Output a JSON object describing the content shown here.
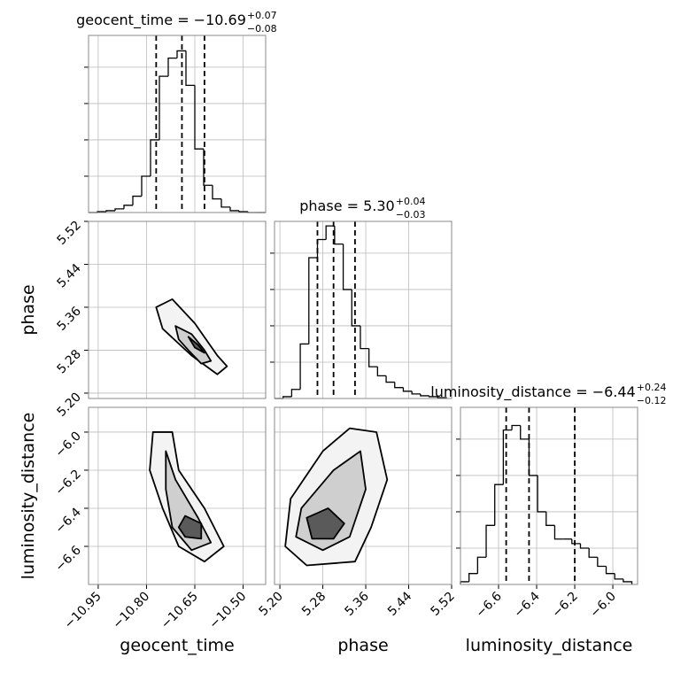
{
  "chart_data": {
    "type": "corner",
    "params": [
      {
        "label": "geocent_time",
        "title": "geocent_time = −10.69",
        "title_sup": "+0.07",
        "title_sub": "−0.08",
        "lim": [
          -10.98,
          -10.43
        ],
        "ticks": [
          {
            "value": -10.95,
            "label": "−10.95"
          },
          {
            "value": -10.8,
            "label": "−10.80"
          },
          {
            "value": -10.65,
            "label": "−10.65"
          },
          {
            "value": -10.5,
            "label": "−10.50"
          }
        ],
        "bins": [
          -10.98,
          -10.9525,
          -10.925,
          -10.8975,
          -10.87,
          -10.8425,
          -10.815,
          -10.7875,
          -10.76,
          -10.7325,
          -10.705,
          -10.6775,
          -10.65,
          -10.6225,
          -10.595,
          -10.5675,
          -10.54,
          -10.5125,
          -10.485,
          -10.4575,
          -10.43
        ],
        "counts": [
          0,
          1,
          2,
          4,
          8,
          18,
          40,
          80,
          150,
          170,
          178,
          140,
          70,
          30,
          15,
          6,
          2,
          1,
          0,
          0
        ],
        "quantiles": [
          -10.77,
          -10.69,
          -10.62
        ]
      },
      {
        "label": "phase",
        "title": "phase = 5.30",
        "title_sup": "+0.04",
        "title_sub": "−0.03",
        "lim": [
          5.19,
          5.52
        ],
        "ticks": [
          {
            "value": 5.2,
            "label": "5.20"
          },
          {
            "value": 5.28,
            "label": "5.28"
          },
          {
            "value": 5.36,
            "label": "5.36"
          },
          {
            "value": 5.44,
            "label": "5.44"
          },
          {
            "value": 5.52,
            "label": "5.52"
          }
        ],
        "bins": [
          5.19,
          5.206,
          5.222,
          5.238,
          5.254,
          5.27,
          5.286,
          5.302,
          5.318,
          5.334,
          5.35,
          5.366,
          5.382,
          5.398,
          5.414,
          5.43,
          5.446,
          5.462,
          5.478,
          5.494,
          5.51
        ],
        "counts": [
          0,
          2,
          10,
          60,
          155,
          175,
          190,
          170,
          120,
          80,
          55,
          35,
          25,
          18,
          12,
          8,
          5,
          3,
          2,
          1
        ],
        "quantiles": [
          5.27,
          5.3,
          5.34
        ]
      },
      {
        "label": "luminosity_distance",
        "title": "luminosity_distance = −6.44",
        "title_sup": "+0.24",
        "title_sub": "−0.12",
        "lim": [
          -6.8,
          -5.87
        ],
        "ticks": [
          {
            "value": -6.6,
            "label": "−6.6"
          },
          {
            "value": -6.4,
            "label": "−6.4"
          },
          {
            "value": -6.2,
            "label": "−6.2"
          },
          {
            "value": -6.0,
            "label": "−6.0"
          }
        ],
        "bins": [
          -6.8,
          -6.755,
          -6.71,
          -6.665,
          -6.62,
          -6.575,
          -6.53,
          -6.485,
          -6.44,
          -6.395,
          -6.35,
          -6.305,
          -6.26,
          -6.215,
          -6.17,
          -6.125,
          -6.08,
          -6.035,
          -5.99,
          -5.945,
          -5.9
        ],
        "counts": [
          3,
          12,
          30,
          65,
          110,
          170,
          175,
          160,
          120,
          80,
          65,
          50,
          50,
          45,
          40,
          30,
          20,
          12,
          6,
          3
        ],
        "quantiles": [
          -6.56,
          -6.44,
          -6.2
        ]
      }
    ],
    "hist_ylim": [
      0,
      195
    ],
    "hist_yticks": [
      40,
      80,
      120,
      160
    ],
    "grid": true,
    "contour_fills": [
      "#f3f3f3",
      "#cfcfcf",
      "#5a5a5a"
    ],
    "pairs": [
      {
        "x": 0,
        "y": 1,
        "contours": [
          {
            "x": [
              -10.77,
              -10.72,
              -10.65,
              -10.58,
              -10.55,
              -10.58,
              -10.66,
              -10.75
            ],
            "y": [
              5.36,
              5.375,
              5.33,
              5.27,
              5.25,
              5.235,
              5.27,
              5.32
            ]
          },
          {
            "x": [
              -10.71,
              -10.66,
              -10.62,
              -10.6,
              -10.63,
              -10.67,
              -10.7
            ],
            "y": [
              5.325,
              5.31,
              5.28,
              5.26,
              5.255,
              5.28,
              5.3
            ]
          },
          {
            "x": [
              -10.67,
              -10.64,
              -10.62,
              -10.65
            ],
            "y": [
              5.305,
              5.29,
              5.275,
              5.285
            ]
          }
        ]
      },
      {
        "x": 0,
        "y": 2,
        "contours": [
          {
            "x": [
              -10.78,
              -10.72,
              -10.7,
              -10.62,
              -10.56,
              -10.62,
              -10.7,
              -10.75,
              -10.79
            ],
            "y": [
              -6.0,
              -6.0,
              -6.2,
              -6.4,
              -6.6,
              -6.68,
              -6.6,
              -6.4,
              -6.2
            ]
          },
          {
            "x": [
              -10.74,
              -10.71,
              -10.64,
              -10.6,
              -10.66,
              -10.72,
              -10.74
            ],
            "y": [
              -6.1,
              -6.25,
              -6.45,
              -6.58,
              -6.62,
              -6.5,
              -6.3
            ]
          },
          {
            "x": [
              -10.68,
              -10.63,
              -10.63,
              -10.68,
              -10.7
            ],
            "y": [
              -6.44,
              -6.48,
              -6.56,
              -6.55,
              -6.5
            ]
          }
        ]
      },
      {
        "x": 1,
        "y": 2,
        "contours": [
          {
            "x": [
              5.22,
              5.28,
              5.33,
              5.38,
              5.4,
              5.37,
              5.34,
              5.25,
              5.21
            ],
            "y": [
              -6.35,
              -6.1,
              -5.98,
              -6.0,
              -6.25,
              -6.5,
              -6.68,
              -6.7,
              -6.6
            ]
          },
          {
            "x": [
              5.24,
              5.3,
              5.35,
              5.36,
              5.33,
              5.28,
              5.23
            ],
            "y": [
              -6.4,
              -6.2,
              -6.1,
              -6.3,
              -6.55,
              -6.62,
              -6.55
            ]
          },
          {
            "x": [
              5.25,
              5.29,
              5.32,
              5.3,
              5.26
            ],
            "y": [
              -6.45,
              -6.4,
              -6.48,
              -6.56,
              -6.56
            ]
          }
        ]
      }
    ]
  }
}
